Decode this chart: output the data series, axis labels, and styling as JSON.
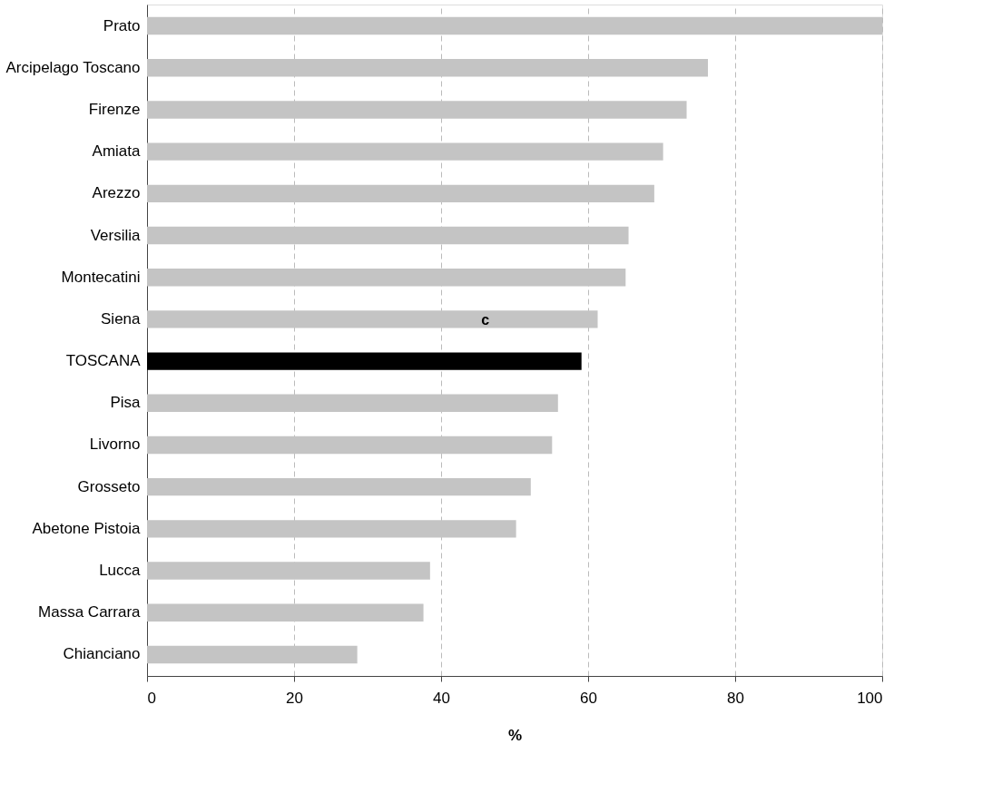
{
  "chart_data": {
    "type": "bar",
    "orientation": "horizontal",
    "xlabel": "%",
    "categories": [
      "Prato",
      "Arcipelago Toscano",
      "Firenze",
      "Amiata",
      "Arezzo",
      "Versilia",
      "Montecatini",
      "Siena",
      "TOSCANA",
      "Pisa",
      "Livorno",
      "Grosseto",
      "Abetone Pistoia",
      "Lucca",
      "Massa Carrara",
      "Chianciano"
    ],
    "values": [
      100,
      76.3,
      73.4,
      70.2,
      69.0,
      65.5,
      65.1,
      61.3,
      59.1,
      55.9,
      55.1,
      52.2,
      50.2,
      38.5,
      37.6,
      28.6
    ],
    "colors": [
      "#c4c4c4",
      "#c4c4c4",
      "#c4c4c4",
      "#c4c4c4",
      "#c4c4c4",
      "#c4c4c4",
      "#c4c4c4",
      "#c4c4c4",
      "#000000",
      "#c4c4c4",
      "#c4c4c4",
      "#c4c4c4",
      "#c4c4c4",
      "#c4c4c4",
      "#c4c4c4",
      "#c4c4c4"
    ],
    "xlim": [
      0,
      100
    ],
    "xticks": [
      0,
      20,
      40,
      60,
      80,
      100
    ],
    "grid": "x",
    "annotations": [
      "c"
    ]
  }
}
